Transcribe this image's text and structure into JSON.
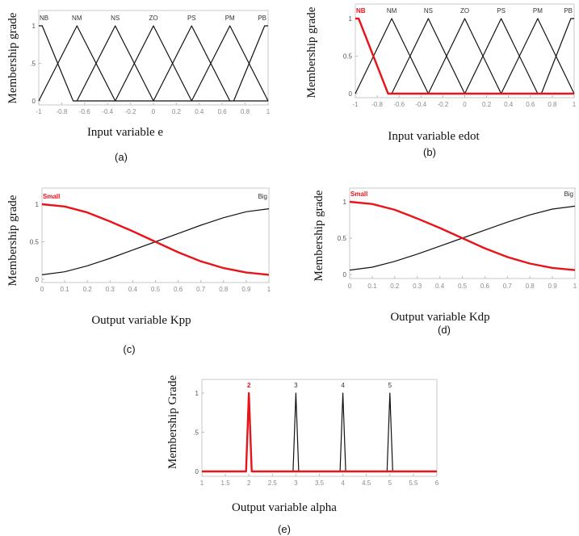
{
  "chart_data": [
    {
      "id": "a",
      "type": "line",
      "caption": "(a)",
      "xlabel": "Input variable e",
      "ylabel": "Membership grade",
      "xlim": [
        -1,
        1
      ],
      "ylim": [
        0,
        1.2
      ],
      "xticks": [
        "-1",
        "-0.8",
        "-0.6",
        "-0.4",
        "-0.2",
        "0",
        "0.2",
        "0.4",
        "0.6",
        "0.8",
        "1"
      ],
      "xtick_values": [
        -1,
        -0.8,
        -0.6,
        -0.4,
        -0.2,
        0,
        0.2,
        0.4,
        0.6,
        0.8,
        1
      ],
      "yticks": [
        "0",
        ".5",
        "1"
      ],
      "ytick_values": [
        0,
        0.5,
        1
      ],
      "series": [
        {
          "name": "NB",
          "color": "#111111",
          "highlight": false,
          "x": [
            -1,
            -0.97,
            -0.7,
            1
          ],
          "y": [
            1,
            1,
            0,
            0
          ]
        },
        {
          "name": "NM",
          "color": "#111111",
          "highlight": false,
          "x": [
            -1,
            -0.667,
            -0.333
          ],
          "y": [
            0,
            1,
            0
          ]
        },
        {
          "name": "NS",
          "color": "#111111",
          "highlight": false,
          "x": [
            -0.667,
            -0.333,
            0
          ],
          "y": [
            0,
            1,
            0
          ]
        },
        {
          "name": "ZO",
          "color": "#111111",
          "highlight": false,
          "x": [
            -0.333,
            0,
            0.333
          ],
          "y": [
            0,
            1,
            0
          ]
        },
        {
          "name": "PS",
          "color": "#111111",
          "highlight": false,
          "x": [
            0,
            0.333,
            0.667
          ],
          "y": [
            0,
            1,
            0
          ]
        },
        {
          "name": "PM",
          "color": "#111111",
          "highlight": false,
          "x": [
            0.333,
            0.667,
            1
          ],
          "y": [
            0,
            1,
            0
          ]
        },
        {
          "name": "PB",
          "color": "#111111",
          "highlight": false,
          "x": [
            0.7,
            0.97,
            1
          ],
          "y": [
            0,
            1,
            1
          ]
        }
      ]
    },
    {
      "id": "b",
      "type": "line",
      "caption": "(b)",
      "xlabel": "Input variable edot",
      "ylabel": "Membership grade",
      "xlim": [
        -1,
        1
      ],
      "ylim": [
        0,
        1.2
      ],
      "xticks": [
        "-1",
        "-0.8",
        "-0.6",
        "-0.4",
        "-0.2",
        "0",
        "0.2",
        "0.4",
        "0.6",
        "0.8",
        "1"
      ],
      "xtick_values": [
        -1,
        -0.8,
        -0.6,
        -0.4,
        -0.2,
        0,
        0.2,
        0.4,
        0.6,
        0.8,
        1
      ],
      "yticks": [
        "0",
        "0.5",
        "1"
      ],
      "ytick_values": [
        0,
        0.5,
        1
      ],
      "series": [
        {
          "name": "NM",
          "color": "#111111",
          "highlight": false,
          "x": [
            -1,
            -0.667,
            -0.333
          ],
          "y": [
            0,
            1,
            0
          ]
        },
        {
          "name": "NS",
          "color": "#111111",
          "highlight": false,
          "x": [
            -0.667,
            -0.333,
            0
          ],
          "y": [
            0,
            1,
            0
          ]
        },
        {
          "name": "ZO",
          "color": "#111111",
          "highlight": false,
          "x": [
            -0.333,
            0,
            0.333
          ],
          "y": [
            0,
            1,
            0
          ]
        },
        {
          "name": "PS",
          "color": "#111111",
          "highlight": false,
          "x": [
            0,
            0.333,
            0.667
          ],
          "y": [
            0,
            1,
            0
          ]
        },
        {
          "name": "PM",
          "color": "#111111",
          "highlight": false,
          "x": [
            0.333,
            0.667,
            1
          ],
          "y": [
            0,
            1,
            0
          ]
        },
        {
          "name": "PB",
          "color": "#111111",
          "highlight": false,
          "x": [
            0.7,
            0.97,
            1
          ],
          "y": [
            0,
            1,
            1
          ]
        },
        {
          "name": "NB",
          "color": "#e8141a",
          "highlight": true,
          "x": [
            -1,
            -0.97,
            -0.7,
            1
          ],
          "y": [
            1,
            1,
            0,
            0
          ]
        }
      ]
    },
    {
      "id": "c",
      "type": "line",
      "caption": "(c)",
      "xlabel": "Output variable Kpp",
      "ylabel": "Membership grade",
      "xlim": [
        0,
        1
      ],
      "ylim": [
        0,
        1.2
      ],
      "xticks": [
        "0",
        "0.1",
        "0.2",
        "0.3",
        "0.4",
        "0.5",
        "0.6",
        "0.7",
        "0.8",
        "0.9",
        "1"
      ],
      "xtick_values": [
        0,
        0.1,
        0.2,
        0.3,
        0.4,
        0.5,
        0.6,
        0.7,
        0.8,
        0.9,
        1
      ],
      "yticks": [
        "0",
        "0.5",
        "1"
      ],
      "ytick_values": [
        0,
        0.5,
        1
      ],
      "series": [
        {
          "name": "Big",
          "color": "#111111",
          "highlight": false,
          "x": [
            0,
            0.1,
            0.2,
            0.3,
            0.4,
            0.5,
            0.6,
            0.7,
            0.8,
            0.9,
            1
          ],
          "y": [
            0.06,
            0.1,
            0.18,
            0.28,
            0.39,
            0.5,
            0.61,
            0.72,
            0.82,
            0.9,
            0.94
          ]
        },
        {
          "name": "Small",
          "color": "#e8141a",
          "highlight": true,
          "x": [
            0,
            0.1,
            0.2,
            0.3,
            0.4,
            0.5,
            0.6,
            0.7,
            0.8,
            0.9,
            1
          ],
          "y": [
            1,
            0.97,
            0.89,
            0.77,
            0.64,
            0.5,
            0.36,
            0.24,
            0.15,
            0.09,
            0.06
          ]
        }
      ]
    },
    {
      "id": "d",
      "type": "line",
      "caption": "(d)",
      "xlabel": "Output variable Kdp",
      "ylabel": "Membership grade",
      "xlim": [
        0,
        1
      ],
      "ylim": [
        0,
        1.2
      ],
      "xticks": [
        "0",
        "0.1",
        "0.2",
        "0.3",
        "0.4",
        "0.5",
        "0.6",
        "0.7",
        "0.8",
        "0.9",
        "1"
      ],
      "xtick_values": [
        0,
        0.1,
        0.2,
        0.3,
        0.4,
        0.5,
        0.6,
        0.7,
        0.8,
        0.9,
        1
      ],
      "yticks": [
        "0",
        "0.5",
        "1"
      ],
      "ytick_values": [
        0,
        0.5,
        1
      ],
      "series": [
        {
          "name": "Big",
          "color": "#111111",
          "highlight": false,
          "x": [
            0,
            0.1,
            0.2,
            0.3,
            0.4,
            0.5,
            0.6,
            0.7,
            0.8,
            0.9,
            1
          ],
          "y": [
            0.06,
            0.1,
            0.18,
            0.28,
            0.39,
            0.5,
            0.61,
            0.72,
            0.82,
            0.9,
            0.94
          ]
        },
        {
          "name": "Small",
          "color": "#e8141a",
          "highlight": true,
          "x": [
            0,
            0.1,
            0.2,
            0.3,
            0.4,
            0.5,
            0.6,
            0.7,
            0.8,
            0.9,
            1
          ],
          "y": [
            1,
            0.97,
            0.89,
            0.77,
            0.64,
            0.5,
            0.36,
            0.24,
            0.15,
            0.09,
            0.06
          ]
        }
      ]
    },
    {
      "id": "e",
      "type": "line",
      "caption": "(e)",
      "xlabel": "Output variable alpha",
      "ylabel": "Membership Grade",
      "xlim": [
        1,
        6
      ],
      "ylim": [
        0,
        1.2
      ],
      "xticks": [
        "1",
        "1.5",
        "2",
        "2.5",
        "3",
        "3.5",
        "4",
        "4.5",
        "5",
        "5.5",
        "6"
      ],
      "xtick_values": [
        1,
        1.5,
        2,
        2.5,
        3,
        3.5,
        4,
        4.5,
        5,
        5.5,
        6
      ],
      "yticks": [
        "0",
        ".5",
        "1"
      ],
      "ytick_values": [
        0,
        0.5,
        1
      ],
      "series": [
        {
          "name": "3",
          "color": "#111111",
          "highlight": false,
          "x": [
            2.94,
            3,
            3.06
          ],
          "y": [
            0,
            1,
            0
          ]
        },
        {
          "name": "4",
          "color": "#111111",
          "highlight": false,
          "x": [
            3.94,
            4,
            4.06
          ],
          "y": [
            0,
            1,
            0
          ]
        },
        {
          "name": "5",
          "color": "#111111",
          "highlight": false,
          "x": [
            4.94,
            5,
            5.06
          ],
          "y": [
            0,
            1,
            0
          ]
        },
        {
          "name": "2",
          "color": "#e8141a",
          "highlight": true,
          "x": [
            1,
            1.94,
            2,
            2.06,
            6
          ],
          "y": [
            0,
            0,
            1,
            0,
            0
          ]
        }
      ]
    }
  ]
}
